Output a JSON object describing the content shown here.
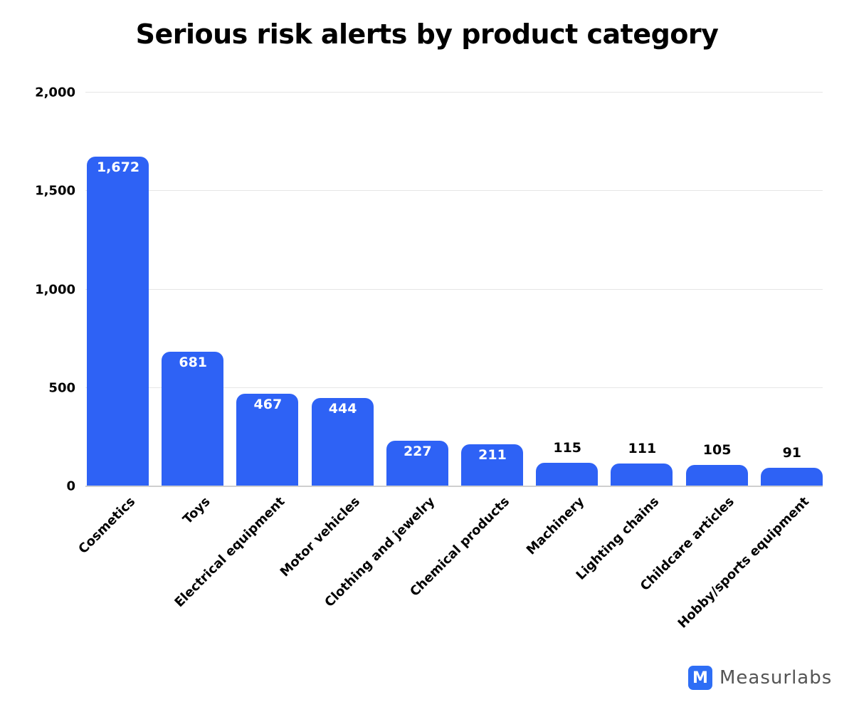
{
  "chart_data": {
    "type": "bar",
    "title": "Serious risk alerts by product category",
    "xlabel": "",
    "ylabel": "",
    "ylim": [
      0,
      2000
    ],
    "yticks": [
      "0",
      "500",
      "1,000",
      "1,500",
      "2,000"
    ],
    "grid": true,
    "categories": [
      "Cosmetics",
      "Toys",
      "Electrical equipment",
      "Motor vehicles",
      "Clothing and jewelry",
      "Chemical products",
      "Machinery",
      "Lighting chains",
      "Childcare articles",
      "Hobby/sports equipment"
    ],
    "values": [
      1672,
      681,
      467,
      444,
      227,
      211,
      115,
      111,
      105,
      91
    ],
    "value_labels": [
      "1,672",
      "681",
      "467",
      "444",
      "227",
      "211",
      "115",
      "111",
      "105",
      "91"
    ],
    "bar_color": "#2e62f5"
  },
  "brand": {
    "logo_glyph": "M",
    "name": "Measurlabs",
    "color": "#2e6ef5"
  }
}
